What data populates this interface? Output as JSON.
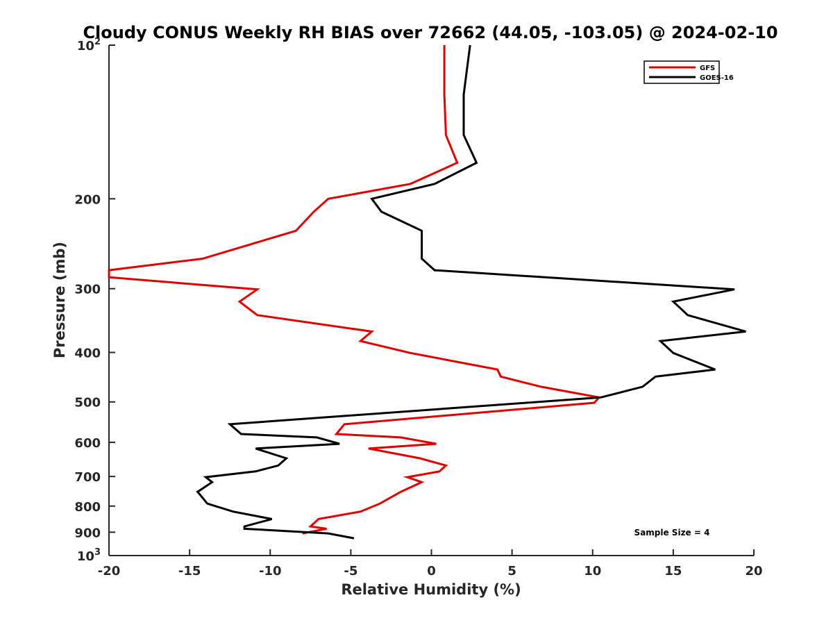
{
  "chart_data": {
    "type": "line",
    "title": "Cloudy CONUS Weekly RH BIAS over 72662 (44.05, -103.05) @ 2024-02-10",
    "xlabel": "Relative Humidity (%)",
    "ylabel": "Pressure (mb)",
    "xlim": [
      -20,
      20
    ],
    "ylim": [
      100,
      1000
    ],
    "yscale": "log",
    "y_reversed": true,
    "grid": false,
    "legend_position": "top-right",
    "x_ticks": [
      "-20",
      "-15",
      "-10",
      "-5",
      "0",
      "5",
      "10",
      "15",
      "20"
    ],
    "y_ticks": [
      {
        "value": 100,
        "base": "10",
        "exp": "2"
      },
      {
        "value": 200,
        "label": "200"
      },
      {
        "value": 300,
        "label": "300"
      },
      {
        "value": 400,
        "label": "400"
      },
      {
        "value": 500,
        "label": "500"
      },
      {
        "value": 600,
        "label": "600"
      },
      {
        "value": 700,
        "label": "700"
      },
      {
        "value": 800,
        "label": "800"
      },
      {
        "value": 900,
        "label": "900"
      },
      {
        "value": 1000,
        "base": "10",
        "exp": "3"
      }
    ],
    "series": [
      {
        "name": "GFS",
        "color": "#e00000",
        "points": [
          [
            0.8,
            100
          ],
          [
            0.8,
            125
          ],
          [
            0.9,
            150
          ],
          [
            1.6,
            170
          ],
          [
            -1.3,
            187
          ],
          [
            -6.4,
            200
          ],
          [
            -7.3,
            212
          ],
          [
            -8.4,
            231
          ],
          [
            -14.2,
            262
          ],
          [
            -20,
            276
          ],
          [
            -20,
            285
          ],
          [
            -10.8,
            301
          ],
          [
            -11.9,
            318
          ],
          [
            -10.8,
            338
          ],
          [
            -3.7,
            364
          ],
          [
            -4.4,
            380
          ],
          [
            -1.3,
            401
          ],
          [
            4.1,
            432
          ],
          [
            4.3,
            446
          ],
          [
            6.8,
            467
          ],
          [
            10.4,
            490
          ],
          [
            10.1,
            502
          ],
          [
            -5.4,
            553
          ],
          [
            -5.9,
            578
          ],
          [
            -1.9,
            587
          ],
          [
            0.3,
            604
          ],
          [
            -3.9,
            617
          ],
          [
            -0.7,
            645
          ],
          [
            0.9,
            666
          ],
          [
            0.5,
            684
          ],
          [
            -1.5,
            702
          ],
          [
            -0.6,
            718
          ],
          [
            -1.9,
            750
          ],
          [
            -3.2,
            791
          ],
          [
            -4.4,
            820
          ],
          [
            -7.0,
            848
          ],
          [
            -7.5,
            877
          ],
          [
            -6.5,
            886
          ],
          [
            -8.0,
            905
          ]
        ]
      },
      {
        "name": "GOES-16",
        "color": "#000000",
        "points": [
          [
            2.4,
            100
          ],
          [
            2.0,
            125
          ],
          [
            2.0,
            150
          ],
          [
            2.8,
            170
          ],
          [
            0.2,
            187
          ],
          [
            -3.7,
            200
          ],
          [
            -3.1,
            212
          ],
          [
            -0.6,
            231
          ],
          [
            -0.6,
            262
          ],
          [
            0.2,
            276
          ],
          [
            18.8,
            301
          ],
          [
            15.0,
            318
          ],
          [
            15.9,
            338
          ],
          [
            19.5,
            364
          ],
          [
            14.2,
            380
          ],
          [
            15.0,
            401
          ],
          [
            17.6,
            432
          ],
          [
            13.9,
            446
          ],
          [
            13.1,
            467
          ],
          [
            10.5,
            490
          ],
          [
            5.9,
            502
          ],
          [
            -12.5,
            553
          ],
          [
            -11.8,
            578
          ],
          [
            -7.1,
            587
          ],
          [
            -5.7,
            604
          ],
          [
            -10.9,
            617
          ],
          [
            -9.0,
            645
          ],
          [
            -9.5,
            666
          ],
          [
            -10.9,
            684
          ],
          [
            -14.0,
            702
          ],
          [
            -13.6,
            718
          ],
          [
            -14.5,
            750
          ],
          [
            -13.9,
            791
          ],
          [
            -12.3,
            820
          ],
          [
            -9.9,
            848
          ],
          [
            -11.6,
            877
          ],
          [
            -11.6,
            886
          ],
          [
            -6.4,
            905
          ],
          [
            -4.8,
            925
          ]
        ]
      }
    ],
    "annotation": "Sample Size = 4"
  }
}
